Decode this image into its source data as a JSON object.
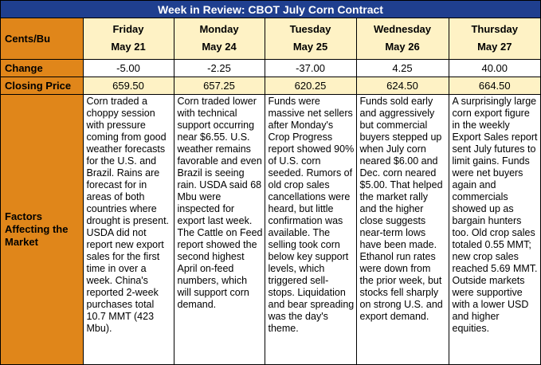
{
  "title": "Week in Review: CBOT July Corn Contract",
  "row_labels": {
    "units": "Cents/Bu",
    "change": "Change",
    "closing": "Closing Price",
    "factors": "Factors Affecting the Market"
  },
  "colors": {
    "title_bg": "#1f3f8f",
    "label_bg": "#e0861a",
    "header_bg": "#fef2c5"
  },
  "days": [
    {
      "day": "Friday",
      "date": "May 21",
      "change": "-5.00",
      "closing": "659.50",
      "factors": "Corn traded a choppy session with pressure coming from good weather forecasts for the U.S. and Brazil. Rains are forecast for in areas of both countries where drought is present. USDA did not report new export sales for the first time in over a week. China's reported 2-week purchases total 10.7 MMT (423 Mbu)."
    },
    {
      "day": "Monday",
      "date": "May 24",
      "change": "-2.25",
      "closing": "657.25",
      "factors": "Corn traded lower with technical support occurring near $6.55. U.S. weather remains favorable and even Brazil is seeing rain. USDA said 68 Mbu were inspected for export last week. The Cattle on Feed report showed the second highest April on-feed numbers, which will support corn demand."
    },
    {
      "day": "Tuesday",
      "date": "May 25",
      "change": "-37.00",
      "closing": "620.25",
      "factors": "Funds were massive net sellers after Monday's Crop Progress report showed 90% of U.S. corn seeded. Rumors of old crop sales cancellations were heard, but little confirmation was available. The selling took corn below key support levels, which triggered sell-stops. Liquidation and bear spreading was the day's theme."
    },
    {
      "day": "Wednesday",
      "date": "May 26",
      "change": "4.25",
      "closing": "624.50",
      "factors": "Funds sold early and aggressively but commercial buyers stepped up when July corn neared $6.00 and Dec. corn neared $5.00. That helped the market rally and the higher close suggests near-term lows have been made. Ethanol run rates were down from the prior week, but stocks fell sharply on strong U.S. and export demand."
    },
    {
      "day": "Thursday",
      "date": "May 27",
      "change": "40.00",
      "closing": "664.50",
      "factors": "A surprisingly large corn export figure in the weekly Export Sales report sent July futures to limit gains. Funds were net buyers again and commercials showed up as bargain hunters too. Old crop sales totaled 0.55 MMT; new crop sales reached 5.69 MMT. Outside markets were supportive with a lower USD and higher equities."
    }
  ]
}
